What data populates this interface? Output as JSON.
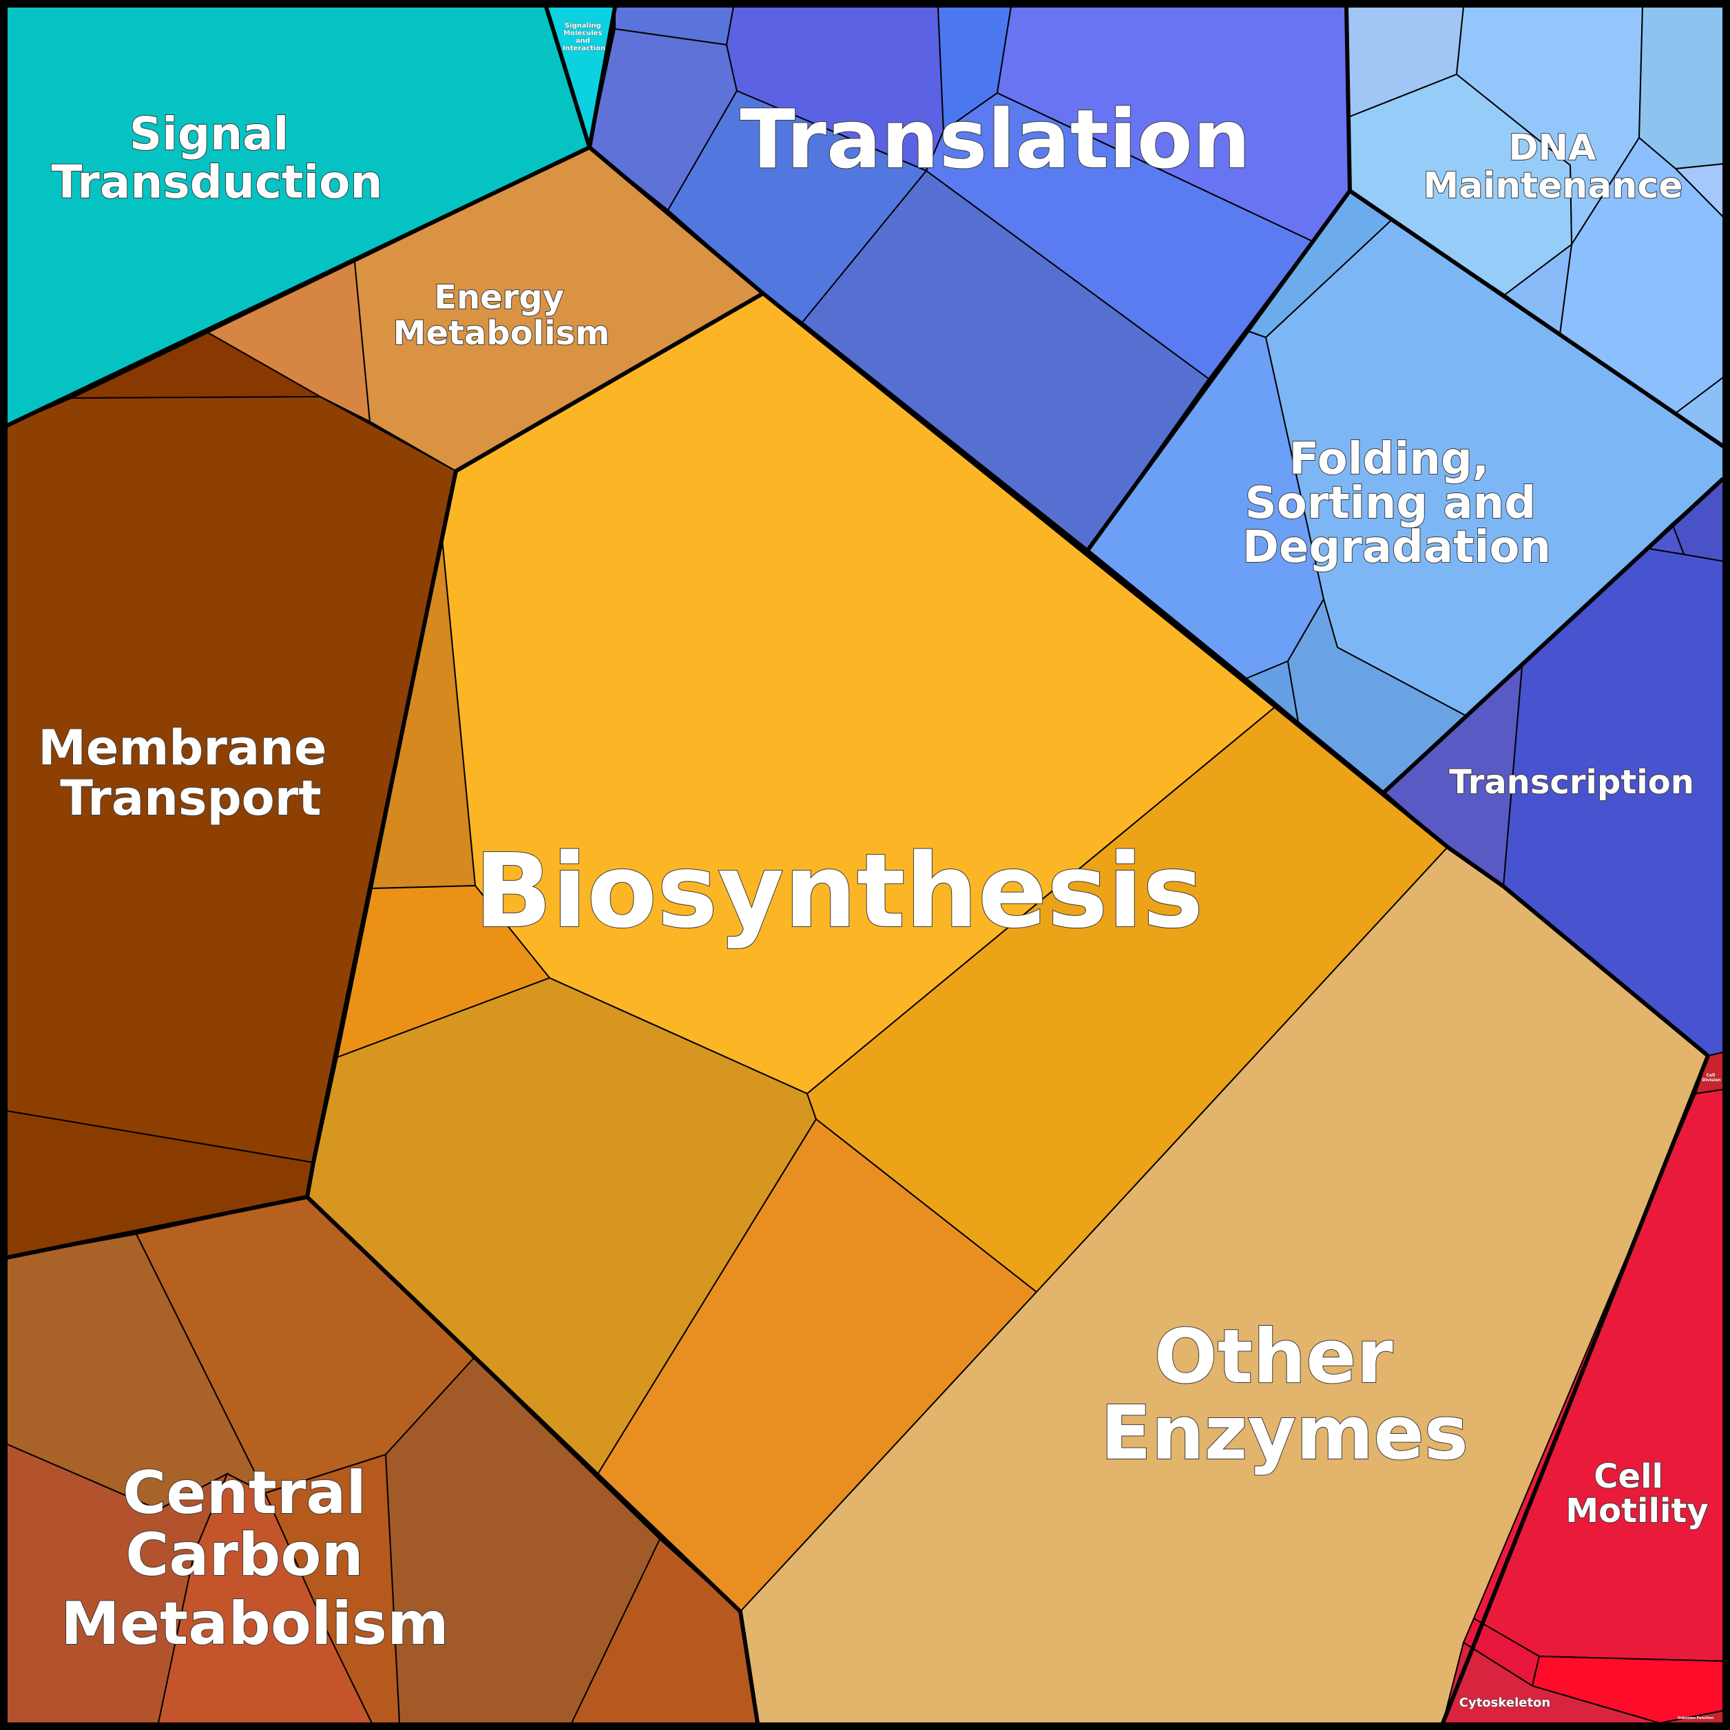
{
  "title": "",
  "categories": [
    {
      "name": "Translation",
      "color": "#5a78e6"
    },
    {
      "name": "Biosynthesis",
      "color": "#fcb625"
    },
    {
      "name": "Other Enzymes",
      "color": "#e2b46c"
    },
    {
      "name": "Membrane Transport",
      "color": "#8e4003"
    },
    {
      "name": "Central Carbon Metabolism",
      "color": "#b5581f"
    },
    {
      "name": "Folding, Sorting and Degradation",
      "color": "#7db5f5"
    },
    {
      "name": "DNA Maintenance",
      "color": "#95cdf9"
    },
    {
      "name": "Transcription",
      "color": "#4851cc"
    },
    {
      "name": "Signal Transduction",
      "color": "#05c3c3"
    },
    {
      "name": "Energy Metabolism",
      "color": "#da9243"
    },
    {
      "name": "Cell Motility",
      "color": "#ea1a3b"
    },
    {
      "name": "Cytoskeleton",
      "color": "#d8243e"
    },
    {
      "name": "Signaling Molecules and Interaction",
      "color": "#0bd1e0"
    },
    {
      "name": "Cell Division",
      "color": "#c8242e"
    },
    {
      "name": "Unknown Function",
      "color": "#c8242e"
    }
  ],
  "labels": {
    "signal_line1": "Signal",
    "signal_line2": "Transduction",
    "smi_line1": "Signaling",
    "smi_line2": "Molecules",
    "smi_line3": "and",
    "smi_line4": "Interaction",
    "translation": "Translation",
    "dna_line1": "DNA",
    "dna_line2": "Maintenance",
    "energy_line1": "Energy",
    "energy_line2": "Metabolism",
    "folding_line1": "Folding,",
    "folding_line2": "Sorting and",
    "folding_line3": "Degradation",
    "membrane_line1": "Membrane",
    "membrane_line2": "Transport",
    "transcription": "Transcription",
    "biosynthesis": "Biosynthesis",
    "other_line1": "Other",
    "other_line2": "Enzymes",
    "ccm_line1": "Central",
    "ccm_line2": "Carbon",
    "ccm_line3": "Metabolism",
    "motility_line1": "Cell",
    "motility_line2": "Motility",
    "cytoskeleton": "Cytoskeleton",
    "celldiv_line1": "Cell",
    "celldiv_line2": "Division",
    "unknown": "Unknown Function"
  }
}
